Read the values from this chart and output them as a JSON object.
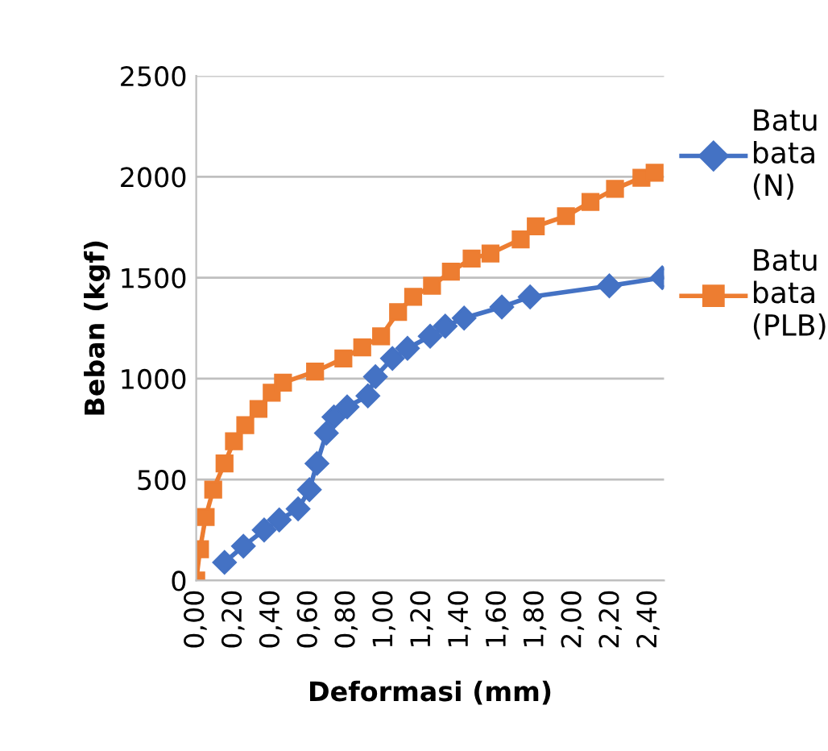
{
  "chart_data": {
    "type": "line",
    "xlabel": "Deformasi (mm)",
    "ylabel": "Beban (kgf)",
    "xlim": [
      0,
      2.48
    ],
    "ylim": [
      0,
      2500
    ],
    "xticks": [
      {
        "value": 0,
        "label": "0,00"
      },
      {
        "value": 0.2,
        "label": "0,20"
      },
      {
        "value": 0.4,
        "label": "0,40"
      },
      {
        "value": 0.6,
        "label": "0,60"
      },
      {
        "value": 0.8,
        "label": "0,80"
      },
      {
        "value": 1.0,
        "label": "1,00"
      },
      {
        "value": 1.2,
        "label": "1,20"
      },
      {
        "value": 1.4,
        "label": "1,40"
      },
      {
        "value": 1.6,
        "label": "1,60"
      },
      {
        "value": 1.8,
        "label": "1,80"
      },
      {
        "value": 2.0,
        "label": "2,00"
      },
      {
        "value": 2.2,
        "label": "2,20"
      },
      {
        "value": 2.4,
        "label": "2,40"
      }
    ],
    "yticks": [
      0,
      500,
      1000,
      1500,
      2000,
      2500
    ],
    "grid": "y",
    "legend": "right",
    "series": [
      {
        "name": "Batu bata (N)",
        "color": "#4472c4",
        "marker": "diamond",
        "x": [
          0.15,
          0.25,
          0.36,
          0.44,
          0.54,
          0.6,
          0.64,
          0.69,
          0.73,
          0.8,
          0.91,
          0.95,
          1.04,
          1.12,
          1.24,
          1.32,
          1.42,
          1.62,
          1.77,
          2.19,
          2.47
        ],
        "values": [
          90,
          170,
          250,
          300,
          355,
          450,
          580,
          730,
          810,
          860,
          915,
          1010,
          1100,
          1150,
          1210,
          1260,
          1300,
          1355,
          1405,
          1460,
          1500
        ]
      },
      {
        "name": "Batu bata (PLB)",
        "color": "#ed7d31",
        "marker": "square",
        "x": [
          0,
          0.02,
          0.05,
          0.09,
          0.15,
          0.2,
          0.26,
          0.33,
          0.4,
          0.46,
          0.63,
          0.78,
          0.88,
          0.98,
          1.07,
          1.15,
          1.25,
          1.35,
          1.46,
          1.56,
          1.72,
          1.8,
          1.96,
          2.09,
          2.22,
          2.36,
          2.43
        ],
        "values": [
          0,
          155,
          315,
          450,
          580,
          690,
          770,
          850,
          930,
          980,
          1035,
          1100,
          1155,
          1210,
          1330,
          1405,
          1460,
          1530,
          1595,
          1620,
          1690,
          1755,
          1805,
          1875,
          1940,
          1995,
          2020
        ]
      }
    ]
  }
}
